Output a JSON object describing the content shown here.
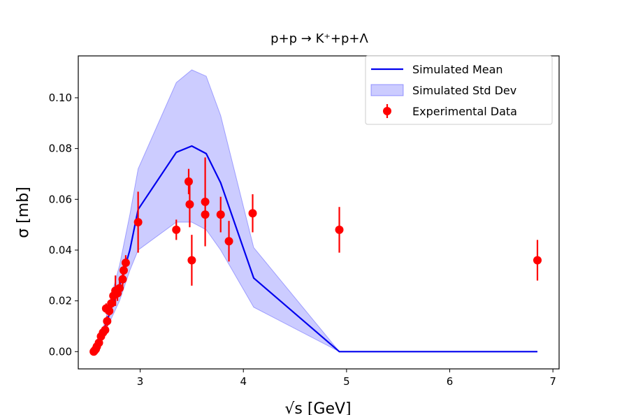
{
  "chart_data": {
    "type": "line",
    "title": "p+p  → K⁺+p+Λ",
    "xlabel": "√s [GeV]",
    "ylabel": "σ [mb]",
    "xlim": [
      2.4,
      7.06
    ],
    "ylim": [
      -0.0068,
      0.1165
    ],
    "xticks": [
      3,
      4,
      5,
      6,
      7
    ],
    "xtick_labels": [
      "3",
      "4",
      "5",
      "6",
      "7"
    ],
    "yticks": [
      0.0,
      0.02,
      0.04,
      0.06,
      0.08,
      0.1
    ],
    "ytick_labels": [
      "0.00",
      "0.02",
      "0.04",
      "0.06",
      "0.08",
      "0.10"
    ],
    "legend_position": "top-right",
    "colors": {
      "mean": "#0000ee",
      "band": "#0000ff",
      "data": "#ff0000"
    },
    "mean_series": {
      "name": "Simulated Mean",
      "x": [
        2.55,
        2.6,
        2.66,
        2.72,
        2.8,
        2.9,
        2.98,
        3.35,
        3.5,
        3.64,
        3.78,
        4.1,
        4.93,
        6.85
      ],
      "y": [
        0.0,
        0.003,
        0.01,
        0.017,
        0.026,
        0.04,
        0.056,
        0.0785,
        0.081,
        0.078,
        0.0665,
        0.029,
        0.0,
        0.0
      ]
    },
    "std_band": {
      "name": "Simulated Std Dev",
      "x": [
        2.55,
        2.6,
        2.66,
        2.72,
        2.8,
        2.9,
        2.98,
        3.35,
        3.5,
        3.64,
        3.78,
        4.1,
        4.93,
        6.85
      ],
      "upper": [
        0.0,
        0.004,
        0.012,
        0.022,
        0.034,
        0.054,
        0.072,
        0.106,
        0.111,
        0.1085,
        0.093,
        0.041,
        0.0,
        0.0
      ],
      "lower": [
        0.0,
        0.002,
        0.008,
        0.013,
        0.02,
        0.032,
        0.04,
        0.051,
        0.051,
        0.048,
        0.04,
        0.0175,
        0.0,
        0.0
      ]
    },
    "experimental_data": {
      "name": "Experimental Data",
      "points": [
        {
          "x": 2.55,
          "y": 0.0,
          "err": 0.0005
        },
        {
          "x": 2.56,
          "y": 0.0005,
          "err": 0.0005
        },
        {
          "x": 2.57,
          "y": 0.001,
          "err": 0.0005
        },
        {
          "x": 2.58,
          "y": 0.002,
          "err": 0.0007
        },
        {
          "x": 2.6,
          "y": 0.0035,
          "err": 0.001
        },
        {
          "x": 2.62,
          "y": 0.006,
          "err": 0.0012
        },
        {
          "x": 2.64,
          "y": 0.0075,
          "err": 0.0015
        },
        {
          "x": 2.66,
          "y": 0.0085,
          "err": 0.002
        },
        {
          "x": 2.68,
          "y": 0.012,
          "err": 0.002
        },
        {
          "x": 2.67,
          "y": 0.017,
          "err": 0.002
        },
        {
          "x": 2.7,
          "y": 0.016,
          "err": 0.002
        },
        {
          "x": 2.72,
          "y": 0.019,
          "err": 0.003
        },
        {
          "x": 2.74,
          "y": 0.022,
          "err": 0.003
        },
        {
          "x": 2.76,
          "y": 0.024,
          "err": 0.006
        },
        {
          "x": 2.78,
          "y": 0.023,
          "err": 0.003
        },
        {
          "x": 2.8,
          "y": 0.025,
          "err": 0.003
        },
        {
          "x": 2.83,
          "y": 0.0285,
          "err": 0.003
        },
        {
          "x": 2.84,
          "y": 0.032,
          "err": 0.004
        },
        {
          "x": 2.86,
          "y": 0.035,
          "err": 0.003
        },
        {
          "x": 2.98,
          "y": 0.051,
          "err": 0.012
        },
        {
          "x": 3.35,
          "y": 0.048,
          "err": 0.004
        },
        {
          "x": 3.47,
          "y": 0.067,
          "err": 0.005
        },
        {
          "x": 3.48,
          "y": 0.058,
          "err": 0.009
        },
        {
          "x": 3.5,
          "y": 0.036,
          "err": 0.01
        },
        {
          "x": 3.63,
          "y": 0.059,
          "err": 0.0175
        },
        {
          "x": 3.63,
          "y": 0.054,
          "err": 0.005
        },
        {
          "x": 3.78,
          "y": 0.054,
          "err": 0.007
        },
        {
          "x": 3.86,
          "y": 0.0435,
          "err": 0.008
        },
        {
          "x": 4.09,
          "y": 0.0545,
          "err": 0.0075
        },
        {
          "x": 4.93,
          "y": 0.048,
          "err": 0.009
        },
        {
          "x": 6.85,
          "y": 0.036,
          "err": 0.008
        }
      ]
    },
    "legend": [
      "Simulated Mean",
      "Simulated Std Dev",
      "Experimental Data"
    ]
  }
}
